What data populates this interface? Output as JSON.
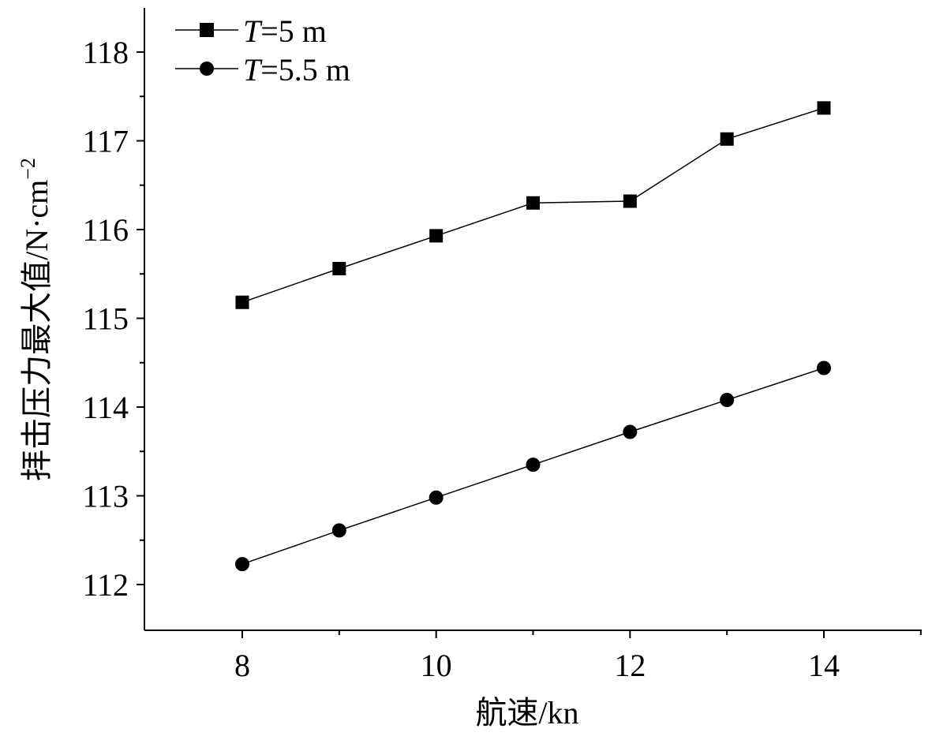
{
  "chart_data": {
    "type": "line",
    "xlabel": "航速/kn",
    "ylabel": "拝击压力最大值/N·cm",
    "ylabel_sup": "−2",
    "xlim": [
      7,
      15
    ],
    "ylim": [
      111.5,
      118.5
    ],
    "x_ticks": [
      8,
      10,
      12,
      14
    ],
    "y_ticks": [
      112,
      113,
      114,
      115,
      116,
      117,
      118
    ],
    "x_ticks_minor": [
      9,
      11,
      13,
      15
    ],
    "y_ticks_minor": [
      112.5,
      113.5,
      114.5,
      115.5,
      116.5,
      117.5
    ],
    "x": [
      8,
      9,
      10,
      11,
      12,
      13,
      14
    ],
    "series": [
      {
        "name": "T=5 m",
        "name_var": "T",
        "name_rest": "=5 m",
        "marker": "square",
        "values": [
          115.18,
          115.56,
          115.93,
          116.3,
          116.32,
          117.02,
          117.37
        ]
      },
      {
        "name": "T=5.5 m",
        "name_var": "T",
        "name_rest": "=5.5 m",
        "marker": "circle",
        "values": [
          112.23,
          112.61,
          112.98,
          113.35,
          113.72,
          114.08,
          114.44
        ]
      }
    ],
    "legend_position": "top-left",
    "grid": false,
    "colors": {
      "line": "#000000",
      "marker": "#000000"
    }
  }
}
